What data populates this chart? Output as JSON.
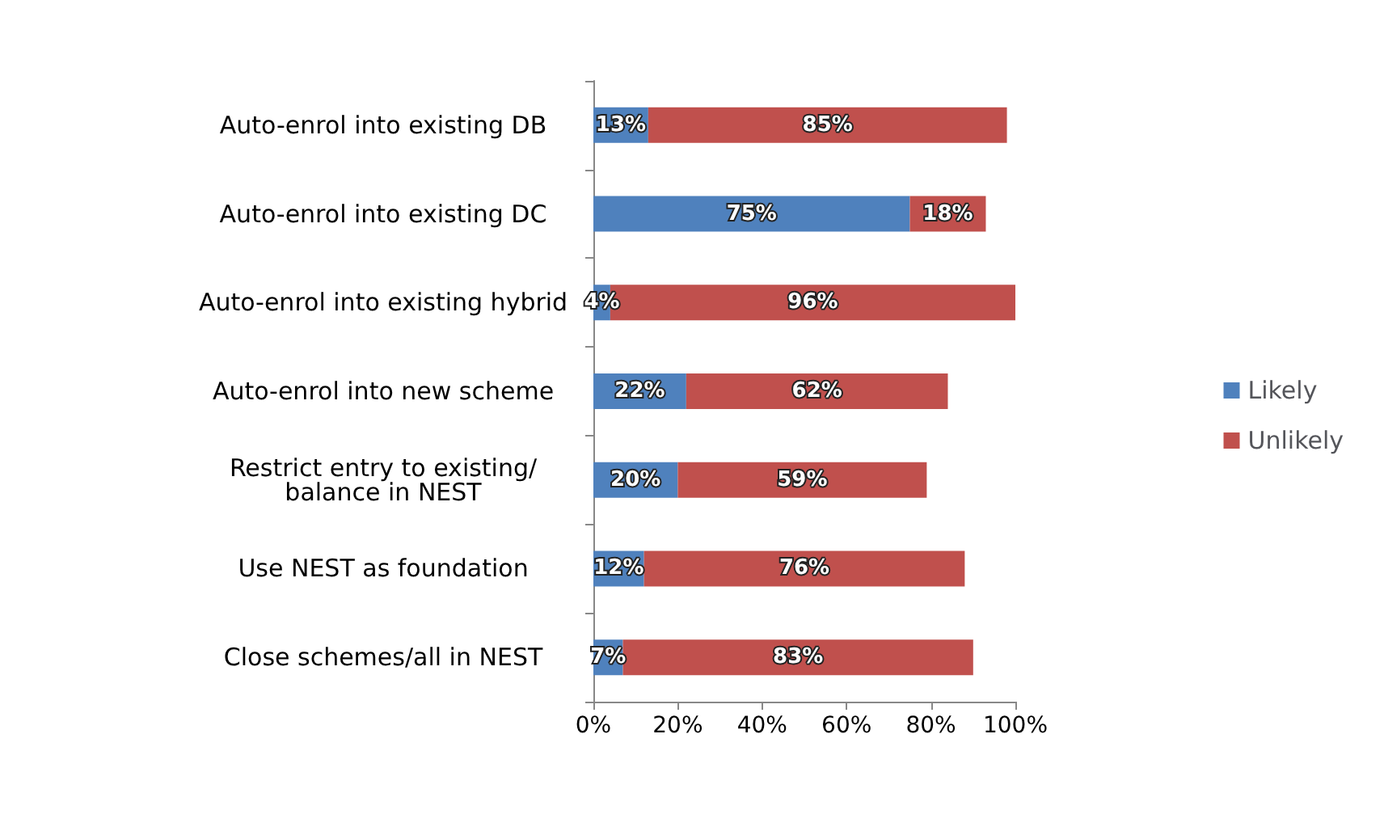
{
  "chart_data": {
    "type": "bar",
    "orientation": "horizontal",
    "stacked": true,
    "categories": [
      "Auto-enrol into existing DB",
      "Auto-enrol into existing DC",
      "Auto-enrol into existing hybrid",
      "Auto-enrol into new scheme",
      "Restrict entry to existing/balance in NEST",
      "Use NEST as foundation",
      "Close schemes/all in NEST"
    ],
    "series": [
      {
        "name": "Likely",
        "color": "#4f81bd",
        "values": [
          13,
          75,
          4,
          22,
          20,
          12,
          7
        ],
        "value_labels": [
          "13%",
          "75%",
          "4%",
          "22%",
          "20%",
          "12%",
          "7%"
        ]
      },
      {
        "name": "Unlikely",
        "color": "#c0504d",
        "values": [
          85,
          18,
          96,
          62,
          59,
          76,
          83
        ],
        "value_labels": [
          "85%",
          "18%",
          "96%",
          "62%",
          "59%",
          "76%",
          "83%"
        ]
      }
    ],
    "xlim": [
      0,
      100
    ],
    "xticks": [
      {
        "value": 0,
        "label": "0%"
      },
      {
        "value": 20,
        "label": "20%"
      },
      {
        "value": 40,
        "label": "40%"
      },
      {
        "value": 60,
        "label": "60%"
      },
      {
        "value": 80,
        "label": "80%"
      },
      {
        "value": 100,
        "label": "100%"
      }
    ],
    "legend": "right",
    "grid": false
  }
}
